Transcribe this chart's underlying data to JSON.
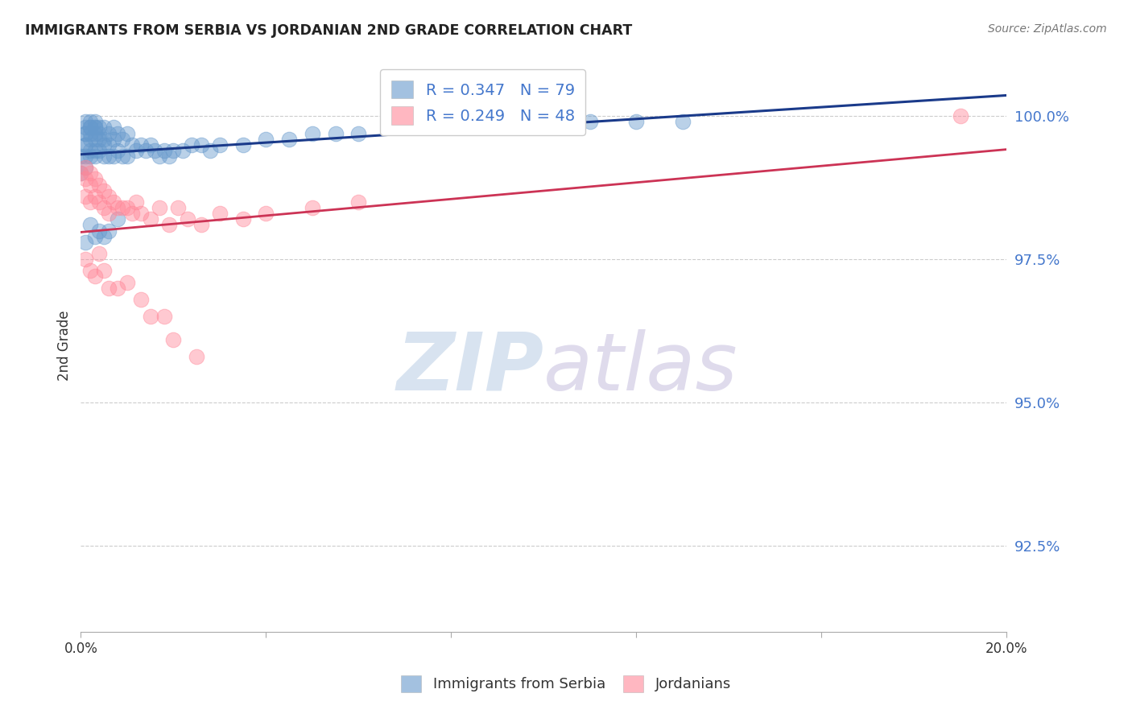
{
  "title": "IMMIGRANTS FROM SERBIA VS JORDANIAN 2ND GRADE CORRELATION CHART",
  "source": "Source: ZipAtlas.com",
  "ylabel": "2nd Grade",
  "ytick_labels": [
    "100.0%",
    "97.5%",
    "95.0%",
    "92.5%"
  ],
  "ytick_values": [
    1.0,
    0.975,
    0.95,
    0.925
  ],
  "xlim": [
    0.0,
    0.2
  ],
  "ylim": [
    0.91,
    1.01
  ],
  "serbia_color": "#6699cc",
  "jordan_color": "#ff8899",
  "serbia_line_color": "#1a3a8a",
  "jordan_line_color": "#cc3355",
  "serbia_x": [
    0.0,
    0.0,
    0.001,
    0.001,
    0.001,
    0.001,
    0.001,
    0.001,
    0.001,
    0.001,
    0.002,
    0.002,
    0.002,
    0.002,
    0.002,
    0.002,
    0.002,
    0.003,
    0.003,
    0.003,
    0.003,
    0.003,
    0.003,
    0.003,
    0.004,
    0.004,
    0.004,
    0.004,
    0.005,
    0.005,
    0.005,
    0.005,
    0.006,
    0.006,
    0.006,
    0.007,
    0.007,
    0.007,
    0.008,
    0.008,
    0.009,
    0.009,
    0.01,
    0.01,
    0.011,
    0.012,
    0.013,
    0.014,
    0.015,
    0.016,
    0.017,
    0.018,
    0.019,
    0.02,
    0.022,
    0.024,
    0.026,
    0.028,
    0.03,
    0.035,
    0.04,
    0.045,
    0.05,
    0.055,
    0.06,
    0.07,
    0.08,
    0.09,
    0.1,
    0.11,
    0.12,
    0.001,
    0.002,
    0.003,
    0.004,
    0.005,
    0.006,
    0.008,
    0.13
  ],
  "serbia_y": [
    0.99,
    0.993,
    0.991,
    0.993,
    0.995,
    0.997,
    0.998,
    0.999,
    0.997,
    0.995,
    0.993,
    0.994,
    0.996,
    0.997,
    0.998,
    0.999,
    0.998,
    0.993,
    0.994,
    0.996,
    0.997,
    0.998,
    0.999,
    0.998,
    0.994,
    0.996,
    0.997,
    0.998,
    0.993,
    0.995,
    0.996,
    0.998,
    0.993,
    0.995,
    0.997,
    0.993,
    0.996,
    0.998,
    0.994,
    0.997,
    0.993,
    0.996,
    0.993,
    0.997,
    0.995,
    0.994,
    0.995,
    0.994,
    0.995,
    0.994,
    0.993,
    0.994,
    0.993,
    0.994,
    0.994,
    0.995,
    0.995,
    0.994,
    0.995,
    0.995,
    0.996,
    0.996,
    0.997,
    0.997,
    0.997,
    0.998,
    0.998,
    0.998,
    0.998,
    0.999,
    0.999,
    0.978,
    0.981,
    0.979,
    0.98,
    0.979,
    0.98,
    0.982,
    0.999
  ],
  "jordan_x": [
    0.0,
    0.001,
    0.001,
    0.001,
    0.002,
    0.002,
    0.002,
    0.003,
    0.003,
    0.004,
    0.004,
    0.005,
    0.005,
    0.006,
    0.006,
    0.007,
    0.008,
    0.009,
    0.01,
    0.011,
    0.012,
    0.013,
    0.015,
    0.017,
    0.019,
    0.021,
    0.023,
    0.026,
    0.03,
    0.035,
    0.04,
    0.05,
    0.06,
    0.001,
    0.002,
    0.003,
    0.004,
    0.005,
    0.006,
    0.008,
    0.01,
    0.013,
    0.015,
    0.018,
    0.02,
    0.025,
    0.19
  ],
  "jordan_y": [
    0.99,
    0.991,
    0.989,
    0.986,
    0.99,
    0.988,
    0.985,
    0.989,
    0.986,
    0.988,
    0.985,
    0.987,
    0.984,
    0.986,
    0.983,
    0.985,
    0.984,
    0.984,
    0.984,
    0.983,
    0.985,
    0.983,
    0.982,
    0.984,
    0.981,
    0.984,
    0.982,
    0.981,
    0.983,
    0.982,
    0.983,
    0.984,
    0.985,
    0.975,
    0.973,
    0.972,
    0.976,
    0.973,
    0.97,
    0.97,
    0.971,
    0.968,
    0.965,
    0.965,
    0.961,
    0.958,
    1.0
  ]
}
